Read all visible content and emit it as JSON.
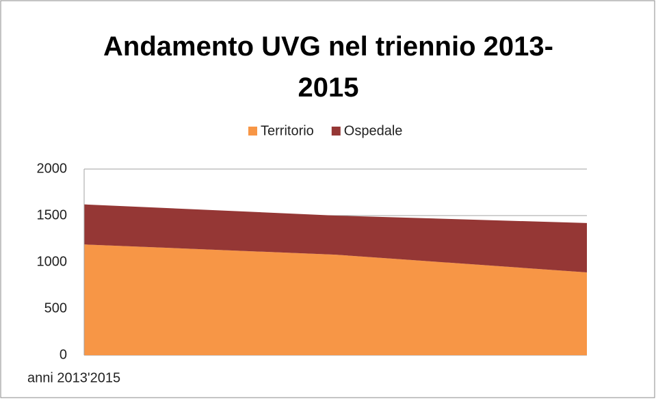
{
  "chart_data": {
    "type": "stacked_area",
    "title": "Andamento UVG nel triennio 2013-2015",
    "x_label": "anni 2013'2015",
    "categories": [
      null,
      null,
      null
    ],
    "series": [
      {
        "name": "Territorio",
        "color": "#f79646",
        "values": [
          1190,
          1080,
          890
        ]
      },
      {
        "name": "Ospedale",
        "color": "#953735",
        "values": [
          430,
          420,
          530
        ]
      }
    ],
    "ylim": [
      0,
      2000
    ],
    "yticks": [
      0,
      500,
      1000,
      1500,
      2000
    ],
    "grid": true,
    "legend": "top"
  }
}
